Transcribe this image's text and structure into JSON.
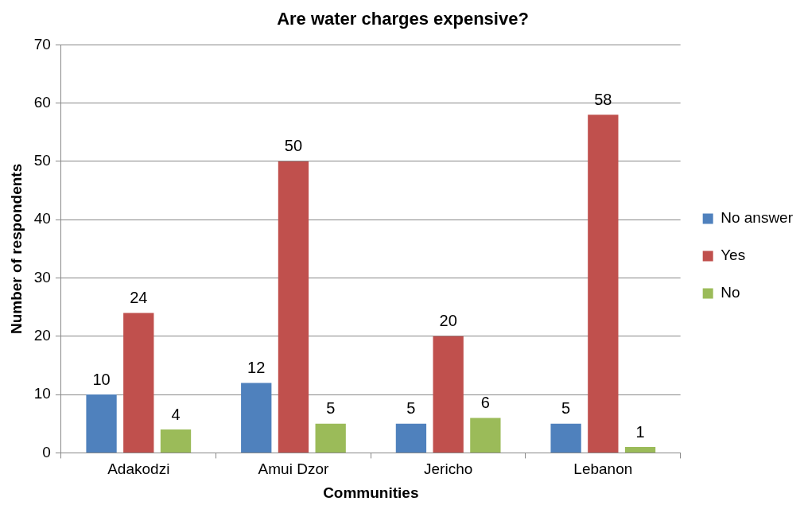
{
  "chart_data": {
    "type": "bar",
    "title": "Are water charges expensive?",
    "xlabel": "Communities",
    "ylabel": "Number of respondents",
    "categories": [
      "Adakodzi",
      "Amui Dzor",
      "Jericho",
      "Lebanon"
    ],
    "series": [
      {
        "name": "No answer",
        "color": "#4f81bd",
        "values": [
          10,
          12,
          5,
          5
        ]
      },
      {
        "name": "Yes",
        "color": "#c0504d",
        "values": [
          24,
          50,
          20,
          58
        ]
      },
      {
        "name": "No",
        "color": "#9bbb59",
        "values": [
          4,
          5,
          6,
          1
        ]
      }
    ],
    "ylim": [
      0,
      70
    ],
    "yticks": [
      0,
      10,
      20,
      30,
      40,
      50,
      60,
      70
    ],
    "grid": "y",
    "legend": "right",
    "data_labels": true
  }
}
